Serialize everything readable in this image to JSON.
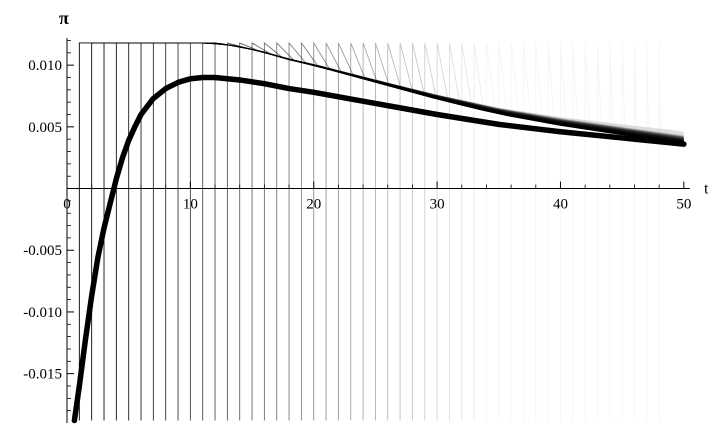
{
  "chart_data": {
    "type": "line",
    "title": "",
    "xlabel": "t",
    "ylabel": "π",
    "xlim": [
      0,
      50.5
    ],
    "ylim": [
      -0.019,
      0.0122
    ],
    "x_ticks": [
      0,
      10,
      20,
      30,
      40,
      50
    ],
    "x_tick_labels": [
      "0",
      "10",
      "20",
      "30",
      "40",
      "50"
    ],
    "y_ticks": [
      0.01,
      0.005,
      -0.005,
      -0.01,
      -0.015
    ],
    "y_tick_labels": [
      "0.010",
      "0.005",
      "-0.005",
      "-0.010",
      "-0.015"
    ],
    "grid": false,
    "legend": "none",
    "colors": {
      "main": "#000000",
      "fan": "#000000",
      "axis": "#000000"
    },
    "series": [
      {
        "role": "main-trajectory",
        "x": [
          0.6,
          1.0,
          1.5,
          2.0,
          2.5,
          3.0,
          3.5,
          4.0,
          4.5,
          5.0,
          5.5,
          6.0,
          7.0,
          8.0,
          9.0,
          10.0,
          11.0,
          12.0,
          13.0,
          14.0,
          16.0,
          18.0,
          20.0,
          25.0,
          30.0,
          35.0,
          40.0,
          45.0,
          50.0
        ],
        "y": [
          -0.0188,
          -0.016,
          -0.0122,
          -0.0087,
          -0.0056,
          -0.0032,
          -0.0012,
          0.0008,
          0.0025,
          0.0039,
          0.005,
          0.006,
          0.0073,
          0.0081,
          0.0086,
          0.0089,
          0.009,
          0.009,
          0.0089,
          0.0088,
          0.0085,
          0.0081,
          0.0078,
          0.0069,
          0.006,
          0.0052,
          0.0046,
          0.0041,
          0.0036
        ]
      }
    ],
    "fan": {
      "count": 48,
      "start_x": 1.0,
      "step_x": 1.0,
      "bottom_y": -0.0188,
      "top_y": 0.0118,
      "end_x": 50.0,
      "tail_end_y_first": 0.0036,
      "tail_end_y_last": 0.0046
    }
  }
}
